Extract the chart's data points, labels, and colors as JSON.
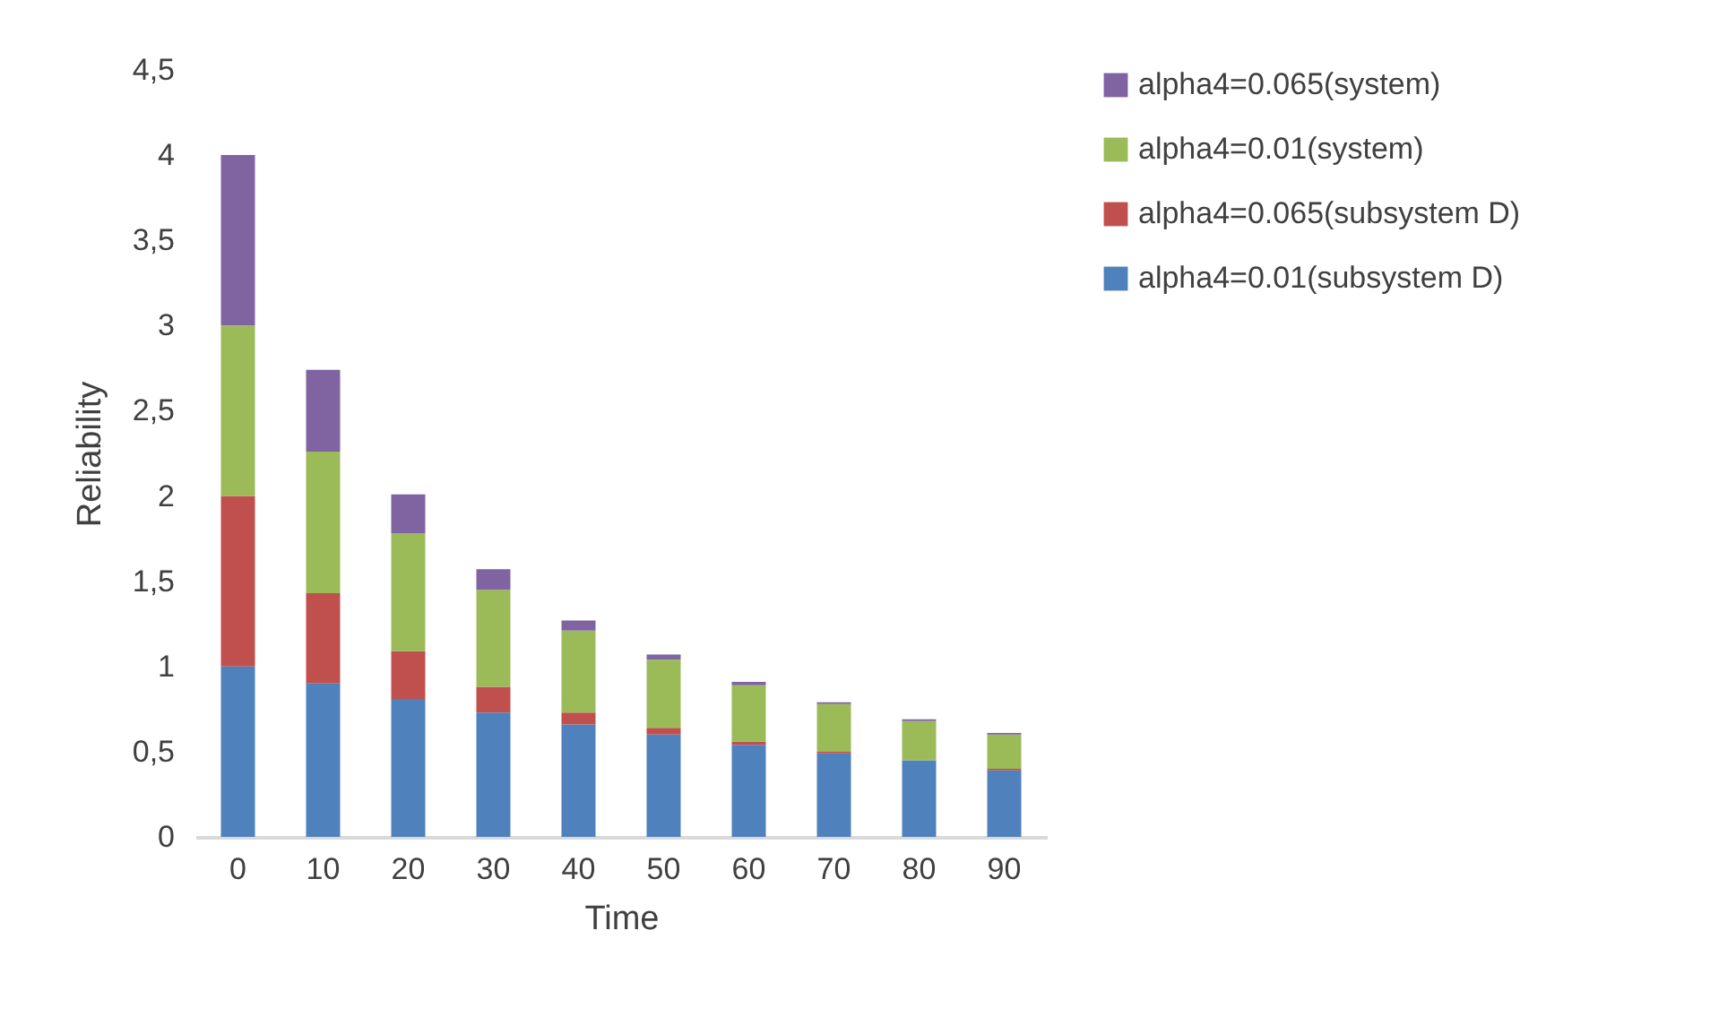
{
  "chart_data": {
    "type": "bar",
    "stacked": true,
    "xlabel": "Time",
    "ylabel": "Reliability",
    "categories": [
      "0",
      "10",
      "20",
      "30",
      "40",
      "50",
      "60",
      "70",
      "80",
      "90"
    ],
    "series": [
      {
        "name": "alpha4=0.01(subsystem D)",
        "color": "#4f81bd",
        "values": [
          1.0,
          0.9,
          0.81,
          0.73,
          0.66,
          0.6,
          0.54,
          0.49,
          0.45,
          0.39
        ]
      },
      {
        "name": "alpha4=0.065(subsystem D)",
        "color": "#c0504d",
        "values": [
          1.0,
          0.53,
          0.28,
          0.15,
          0.07,
          0.04,
          0.02,
          0.01,
          null,
          0.01
        ]
      },
      {
        "name": "alpha4=0.01(system)",
        "color": "#9bbb59",
        "values": [
          1.0,
          0.83,
          0.69,
          0.57,
          0.48,
          0.4,
          0.33,
          0.28,
          0.23,
          0.2
        ]
      },
      {
        "name": "alpha4=0.065(system)",
        "color": "#8064a2",
        "values": [
          1.0,
          0.48,
          0.23,
          0.12,
          0.06,
          0.03,
          0.02,
          0.01,
          0.01,
          0.01
        ]
      }
    ],
    "ylim": [
      0,
      4.5
    ],
    "yticks": [
      0,
      {
        "value": 0.5,
        "label": "0,5"
      },
      1,
      {
        "value": 1.5,
        "label": "1,5"
      },
      2,
      {
        "value": 2.5,
        "label": "2,5"
      },
      3,
      {
        "value": 3.5,
        "label": "3,5"
      },
      4,
      {
        "value": 4.5,
        "label": "4,5"
      }
    ],
    "grid": false,
    "legend": "right"
  }
}
